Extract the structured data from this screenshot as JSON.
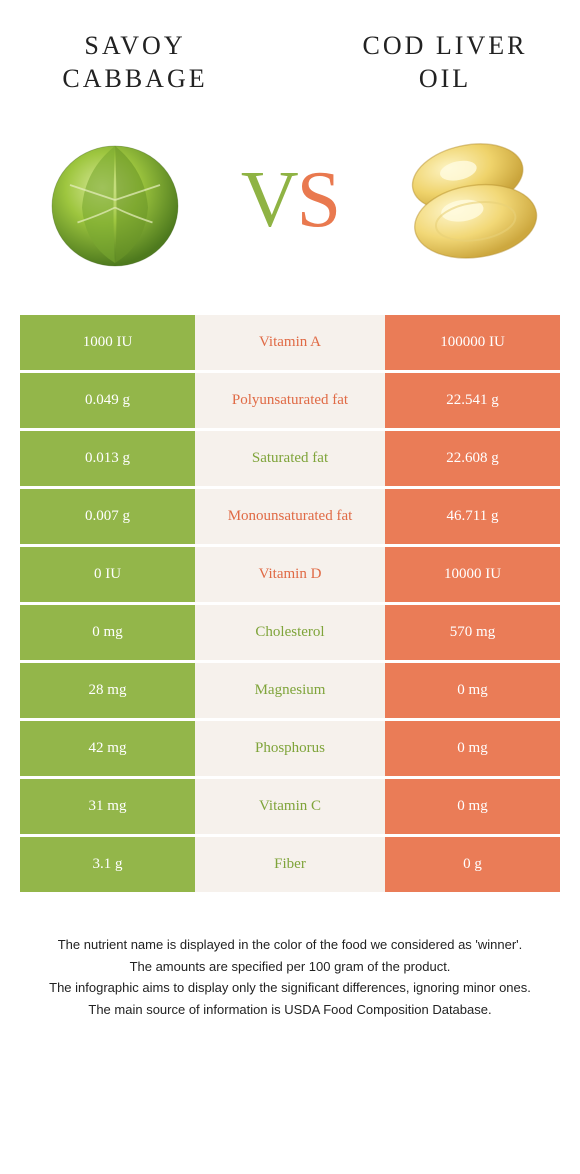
{
  "colors": {
    "green": "#93b64a",
    "orange": "#ea7c57",
    "mid_bg": "#f6f1ec",
    "green_text": "#7fa43a",
    "orange_text": "#e06a45"
  },
  "left_title": "SAVOY CABBAGE",
  "right_title": "COD LIVER OIL",
  "vs_v": "V",
  "vs_s": "S",
  "rows": [
    {
      "left": "1000 IU",
      "mid": "Vitamin A",
      "right": "100000 IU",
      "winner": "right"
    },
    {
      "left": "0.049 g",
      "mid": "Polyunsaturated fat",
      "right": "22.541 g",
      "winner": "right"
    },
    {
      "left": "0.013 g",
      "mid": "Saturated fat",
      "right": "22.608 g",
      "winner": "left"
    },
    {
      "left": "0.007 g",
      "mid": "Monounsaturated fat",
      "right": "46.711 g",
      "winner": "right"
    },
    {
      "left": "0 IU",
      "mid": "Vitamin D",
      "right": "10000 IU",
      "winner": "right"
    },
    {
      "left": "0 mg",
      "mid": "Cholesterol",
      "right": "570 mg",
      "winner": "left"
    },
    {
      "left": "28 mg",
      "mid": "Magnesium",
      "right": "0 mg",
      "winner": "left"
    },
    {
      "left": "42 mg",
      "mid": "Phosphorus",
      "right": "0 mg",
      "winner": "left"
    },
    {
      "left": "31 mg",
      "mid": "Vitamin C",
      "right": "0 mg",
      "winner": "left"
    },
    {
      "left": "3.1 g",
      "mid": "Fiber",
      "right": "0 g",
      "winner": "left"
    }
  ],
  "footer": [
    "The nutrient name is displayed in the color of the food we considered as 'winner'.",
    "The amounts are specified per 100 gram of the product.",
    "The infographic aims to display only the significant differences, ignoring minor ones.",
    "The main source of information is USDA Food Composition Database."
  ]
}
